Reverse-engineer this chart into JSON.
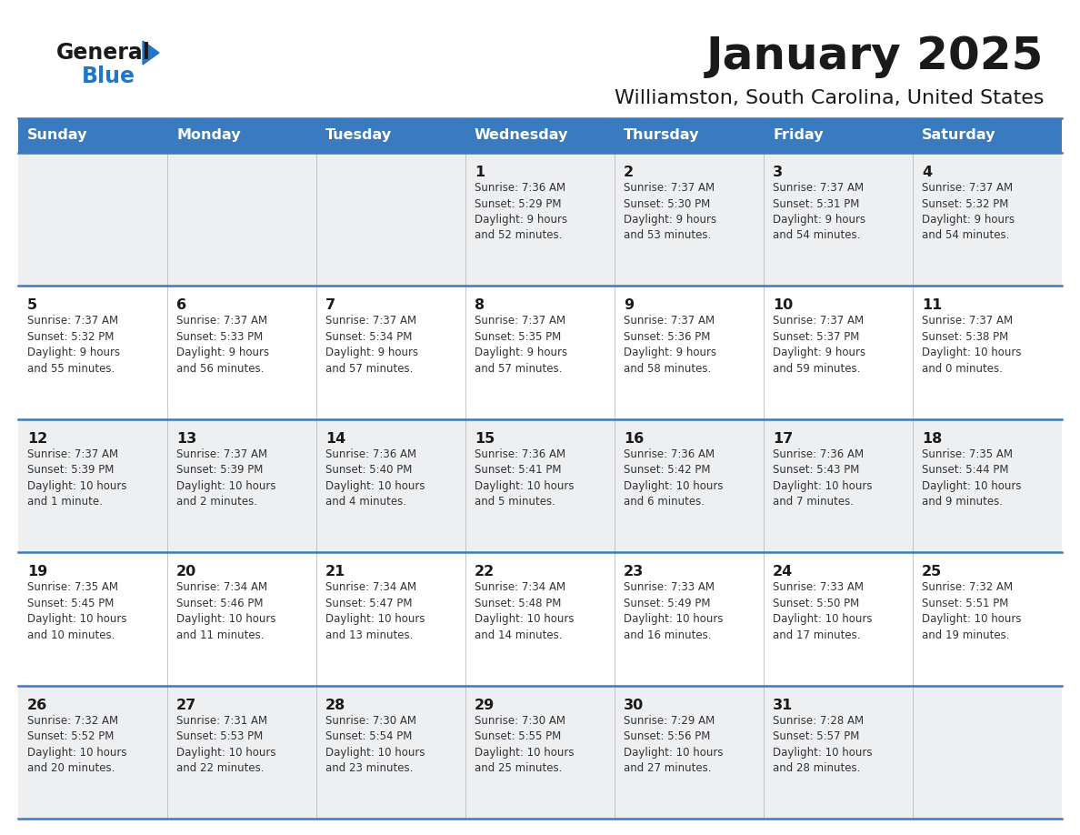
{
  "title": "January 2025",
  "subtitle": "Williamston, South Carolina, United States",
  "days_of_week": [
    "Sunday",
    "Monday",
    "Tuesday",
    "Wednesday",
    "Thursday",
    "Friday",
    "Saturday"
  ],
  "header_bg": "#3a7abf",
  "header_text": "#ffffff",
  "row_bg_odd": "#eeeff1",
  "row_bg_even": "#ffffff",
  "separator_color": "#3a7abf",
  "title_color": "#1a1a1a",
  "subtitle_color": "#1a1a1a",
  "day_num_color": "#1a1a1a",
  "cell_text_color": "#333333",
  "logo_general_color": "#1a1a1a",
  "logo_blue_color": "#2176c7",
  "calendar_data": [
    [
      null,
      null,
      null,
      {
        "day": 1,
        "sunrise": "7:36 AM",
        "sunset": "5:29 PM",
        "daylight": "9 hours\nand 52 minutes."
      },
      {
        "day": 2,
        "sunrise": "7:37 AM",
        "sunset": "5:30 PM",
        "daylight": "9 hours\nand 53 minutes."
      },
      {
        "day": 3,
        "sunrise": "7:37 AM",
        "sunset": "5:31 PM",
        "daylight": "9 hours\nand 54 minutes."
      },
      {
        "day": 4,
        "sunrise": "7:37 AM",
        "sunset": "5:32 PM",
        "daylight": "9 hours\nand 54 minutes."
      }
    ],
    [
      {
        "day": 5,
        "sunrise": "7:37 AM",
        "sunset": "5:32 PM",
        "daylight": "9 hours\nand 55 minutes."
      },
      {
        "day": 6,
        "sunrise": "7:37 AM",
        "sunset": "5:33 PM",
        "daylight": "9 hours\nand 56 minutes."
      },
      {
        "day": 7,
        "sunrise": "7:37 AM",
        "sunset": "5:34 PM",
        "daylight": "9 hours\nand 57 minutes."
      },
      {
        "day": 8,
        "sunrise": "7:37 AM",
        "sunset": "5:35 PM",
        "daylight": "9 hours\nand 57 minutes."
      },
      {
        "day": 9,
        "sunrise": "7:37 AM",
        "sunset": "5:36 PM",
        "daylight": "9 hours\nand 58 minutes."
      },
      {
        "day": 10,
        "sunrise": "7:37 AM",
        "sunset": "5:37 PM",
        "daylight": "9 hours\nand 59 minutes."
      },
      {
        "day": 11,
        "sunrise": "7:37 AM",
        "sunset": "5:38 PM",
        "daylight": "10 hours\nand 0 minutes."
      }
    ],
    [
      {
        "day": 12,
        "sunrise": "7:37 AM",
        "sunset": "5:39 PM",
        "daylight": "10 hours\nand 1 minute."
      },
      {
        "day": 13,
        "sunrise": "7:37 AM",
        "sunset": "5:39 PM",
        "daylight": "10 hours\nand 2 minutes."
      },
      {
        "day": 14,
        "sunrise": "7:36 AM",
        "sunset": "5:40 PM",
        "daylight": "10 hours\nand 4 minutes."
      },
      {
        "day": 15,
        "sunrise": "7:36 AM",
        "sunset": "5:41 PM",
        "daylight": "10 hours\nand 5 minutes."
      },
      {
        "day": 16,
        "sunrise": "7:36 AM",
        "sunset": "5:42 PM",
        "daylight": "10 hours\nand 6 minutes."
      },
      {
        "day": 17,
        "sunrise": "7:36 AM",
        "sunset": "5:43 PM",
        "daylight": "10 hours\nand 7 minutes."
      },
      {
        "day": 18,
        "sunrise": "7:35 AM",
        "sunset": "5:44 PM",
        "daylight": "10 hours\nand 9 minutes."
      }
    ],
    [
      {
        "day": 19,
        "sunrise": "7:35 AM",
        "sunset": "5:45 PM",
        "daylight": "10 hours\nand 10 minutes."
      },
      {
        "day": 20,
        "sunrise": "7:34 AM",
        "sunset": "5:46 PM",
        "daylight": "10 hours\nand 11 minutes."
      },
      {
        "day": 21,
        "sunrise": "7:34 AM",
        "sunset": "5:47 PM",
        "daylight": "10 hours\nand 13 minutes."
      },
      {
        "day": 22,
        "sunrise": "7:34 AM",
        "sunset": "5:48 PM",
        "daylight": "10 hours\nand 14 minutes."
      },
      {
        "day": 23,
        "sunrise": "7:33 AM",
        "sunset": "5:49 PM",
        "daylight": "10 hours\nand 16 minutes."
      },
      {
        "day": 24,
        "sunrise": "7:33 AM",
        "sunset": "5:50 PM",
        "daylight": "10 hours\nand 17 minutes."
      },
      {
        "day": 25,
        "sunrise": "7:32 AM",
        "sunset": "5:51 PM",
        "daylight": "10 hours\nand 19 minutes."
      }
    ],
    [
      {
        "day": 26,
        "sunrise": "7:32 AM",
        "sunset": "5:52 PM",
        "daylight": "10 hours\nand 20 minutes."
      },
      {
        "day": 27,
        "sunrise": "7:31 AM",
        "sunset": "5:53 PM",
        "daylight": "10 hours\nand 22 minutes."
      },
      {
        "day": 28,
        "sunrise": "7:30 AM",
        "sunset": "5:54 PM",
        "daylight": "10 hours\nand 23 minutes."
      },
      {
        "day": 29,
        "sunrise": "7:30 AM",
        "sunset": "5:55 PM",
        "daylight": "10 hours\nand 25 minutes."
      },
      {
        "day": 30,
        "sunrise": "7:29 AM",
        "sunset": "5:56 PM",
        "daylight": "10 hours\nand 27 minutes."
      },
      {
        "day": 31,
        "sunrise": "7:28 AM",
        "sunset": "5:57 PM",
        "daylight": "10 hours\nand 28 minutes."
      },
      null
    ]
  ]
}
